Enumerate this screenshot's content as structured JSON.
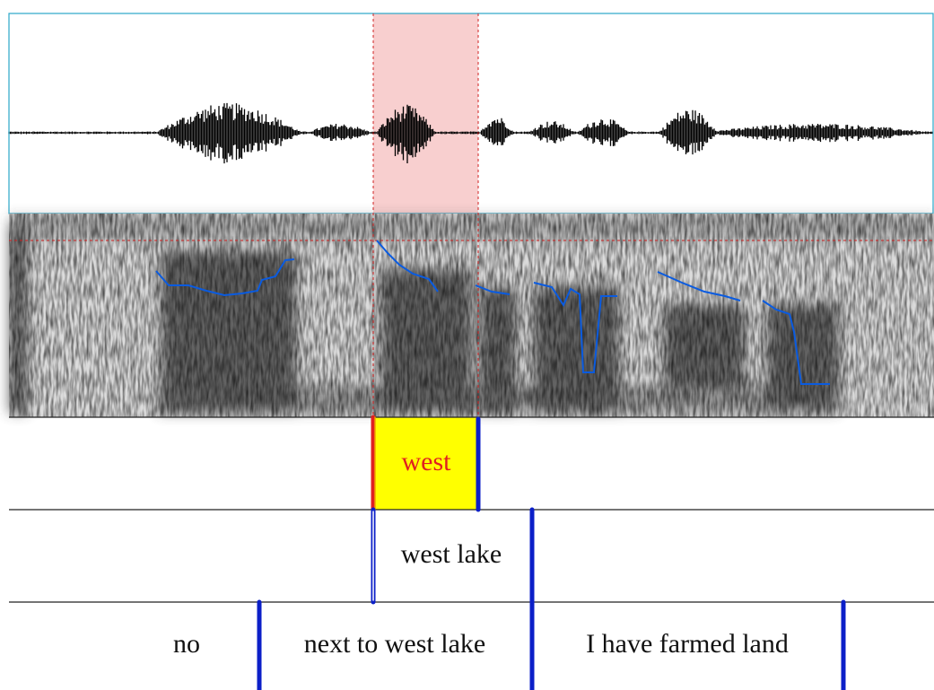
{
  "tiers": [
    {
      "intervals": [
        "west"
      ]
    },
    {
      "intervals": [
        "west lake"
      ]
    },
    {
      "intervals": [
        "no",
        "next to west lake",
        "I have farmed land"
      ]
    }
  ]
}
